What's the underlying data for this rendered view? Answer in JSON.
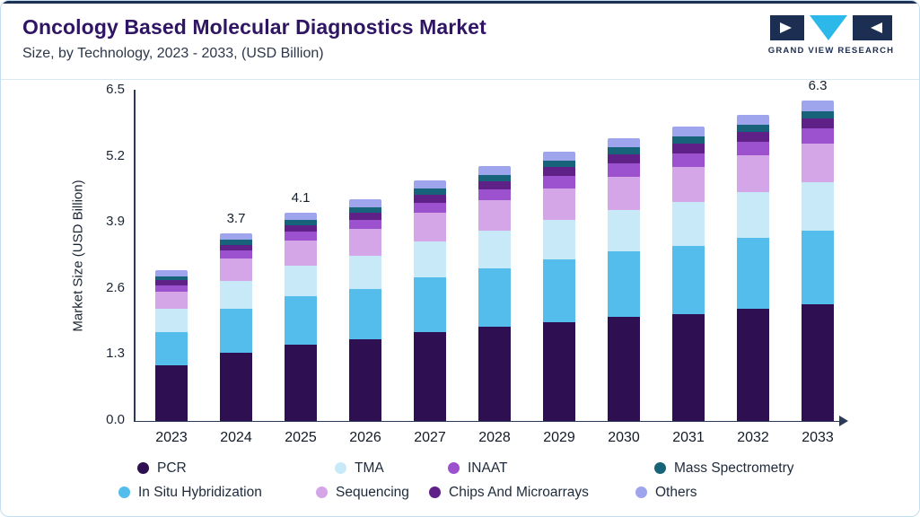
{
  "header": {
    "title": "Oncology Based Molecular Diagnostics Market",
    "subtitle": "Size, by Technology, 2023 - 2033, (USD Billion)",
    "logo_text": "GRAND VIEW RESEARCH"
  },
  "colors": {
    "accent_topbar": "#1D2F52",
    "card_border": "#C3DFEF",
    "axis": "#2B3A58",
    "title_text": "#2F1563",
    "logo_navy": "#1C2E52",
    "logo_cyan": "#2CB9E9"
  },
  "chart_data": {
    "type": "bar",
    "stacked": true,
    "title": "Oncology Based Molecular Diagnostics Market Size, by Technology, 2023 - 2033, (USD Billion)",
    "xlabel": "",
    "ylabel": "Market Size (USD Billion)",
    "ylim": [
      0,
      6.5
    ],
    "ytick_labels": [
      "0.0",
      "1.3",
      "2.6",
      "3.9",
      "5.2",
      "6.5"
    ],
    "grid": false,
    "legend_position": "bottom",
    "categories": [
      "2023",
      "2024",
      "2025",
      "2026",
      "2027",
      "2028",
      "2029",
      "2030",
      "2031",
      "2032",
      "2033"
    ],
    "series": [
      {
        "name": "PCR",
        "color": "#2E1052",
        "values": [
          1.1,
          1.35,
          1.5,
          1.6,
          1.75,
          1.85,
          1.95,
          2.05,
          2.1,
          2.2,
          2.3
        ]
      },
      {
        "name": "In Situ Hybridization",
        "color": "#55BDEB",
        "values": [
          0.65,
          0.85,
          0.95,
          1.0,
          1.08,
          1.15,
          1.22,
          1.28,
          1.35,
          1.4,
          1.45
        ]
      },
      {
        "name": "TMA",
        "color": "#C8E9F8",
        "values": [
          0.45,
          0.55,
          0.6,
          0.65,
          0.7,
          0.74,
          0.78,
          0.82,
          0.86,
          0.9,
          0.95
        ]
      },
      {
        "name": "Sequencing",
        "color": "#D4A6E8",
        "values": [
          0.35,
          0.45,
          0.5,
          0.53,
          0.57,
          0.6,
          0.63,
          0.66,
          0.69,
          0.72,
          0.75
        ]
      },
      {
        "name": "INAAT",
        "color": "#9C51CE",
        "values": [
          0.12,
          0.15,
          0.17,
          0.18,
          0.2,
          0.22,
          0.24,
          0.26,
          0.27,
          0.28,
          0.3
        ]
      },
      {
        "name": "Chips And Microarrays",
        "color": "#5F2187",
        "values": [
          0.1,
          0.12,
          0.13,
          0.14,
          0.15,
          0.16,
          0.17,
          0.18,
          0.19,
          0.19,
          0.2
        ]
      },
      {
        "name": "Mass Spectrometry",
        "color": "#176379",
        "values": [
          0.08,
          0.1,
          0.1,
          0.11,
          0.12,
          0.12,
          0.13,
          0.13,
          0.14,
          0.14,
          0.15
        ]
      },
      {
        "name": "Others",
        "color": "#9EA5EC",
        "values": [
          0.12,
          0.13,
          0.15,
          0.15,
          0.16,
          0.17,
          0.18,
          0.19,
          0.2,
          0.2,
          0.2
        ]
      }
    ],
    "annotations": [
      {
        "category": "2024",
        "text": "3.7"
      },
      {
        "category": "2025",
        "text": "4.1"
      },
      {
        "category": "2033",
        "text": "6.3"
      }
    ],
    "legend_rows": [
      [
        "PCR",
        "TMA",
        "INAAT",
        "Mass Spectrometry"
      ],
      [
        "In Situ Hybridization",
        "Sequencing",
        "Chips And Microarrays",
        "Others"
      ]
    ]
  }
}
